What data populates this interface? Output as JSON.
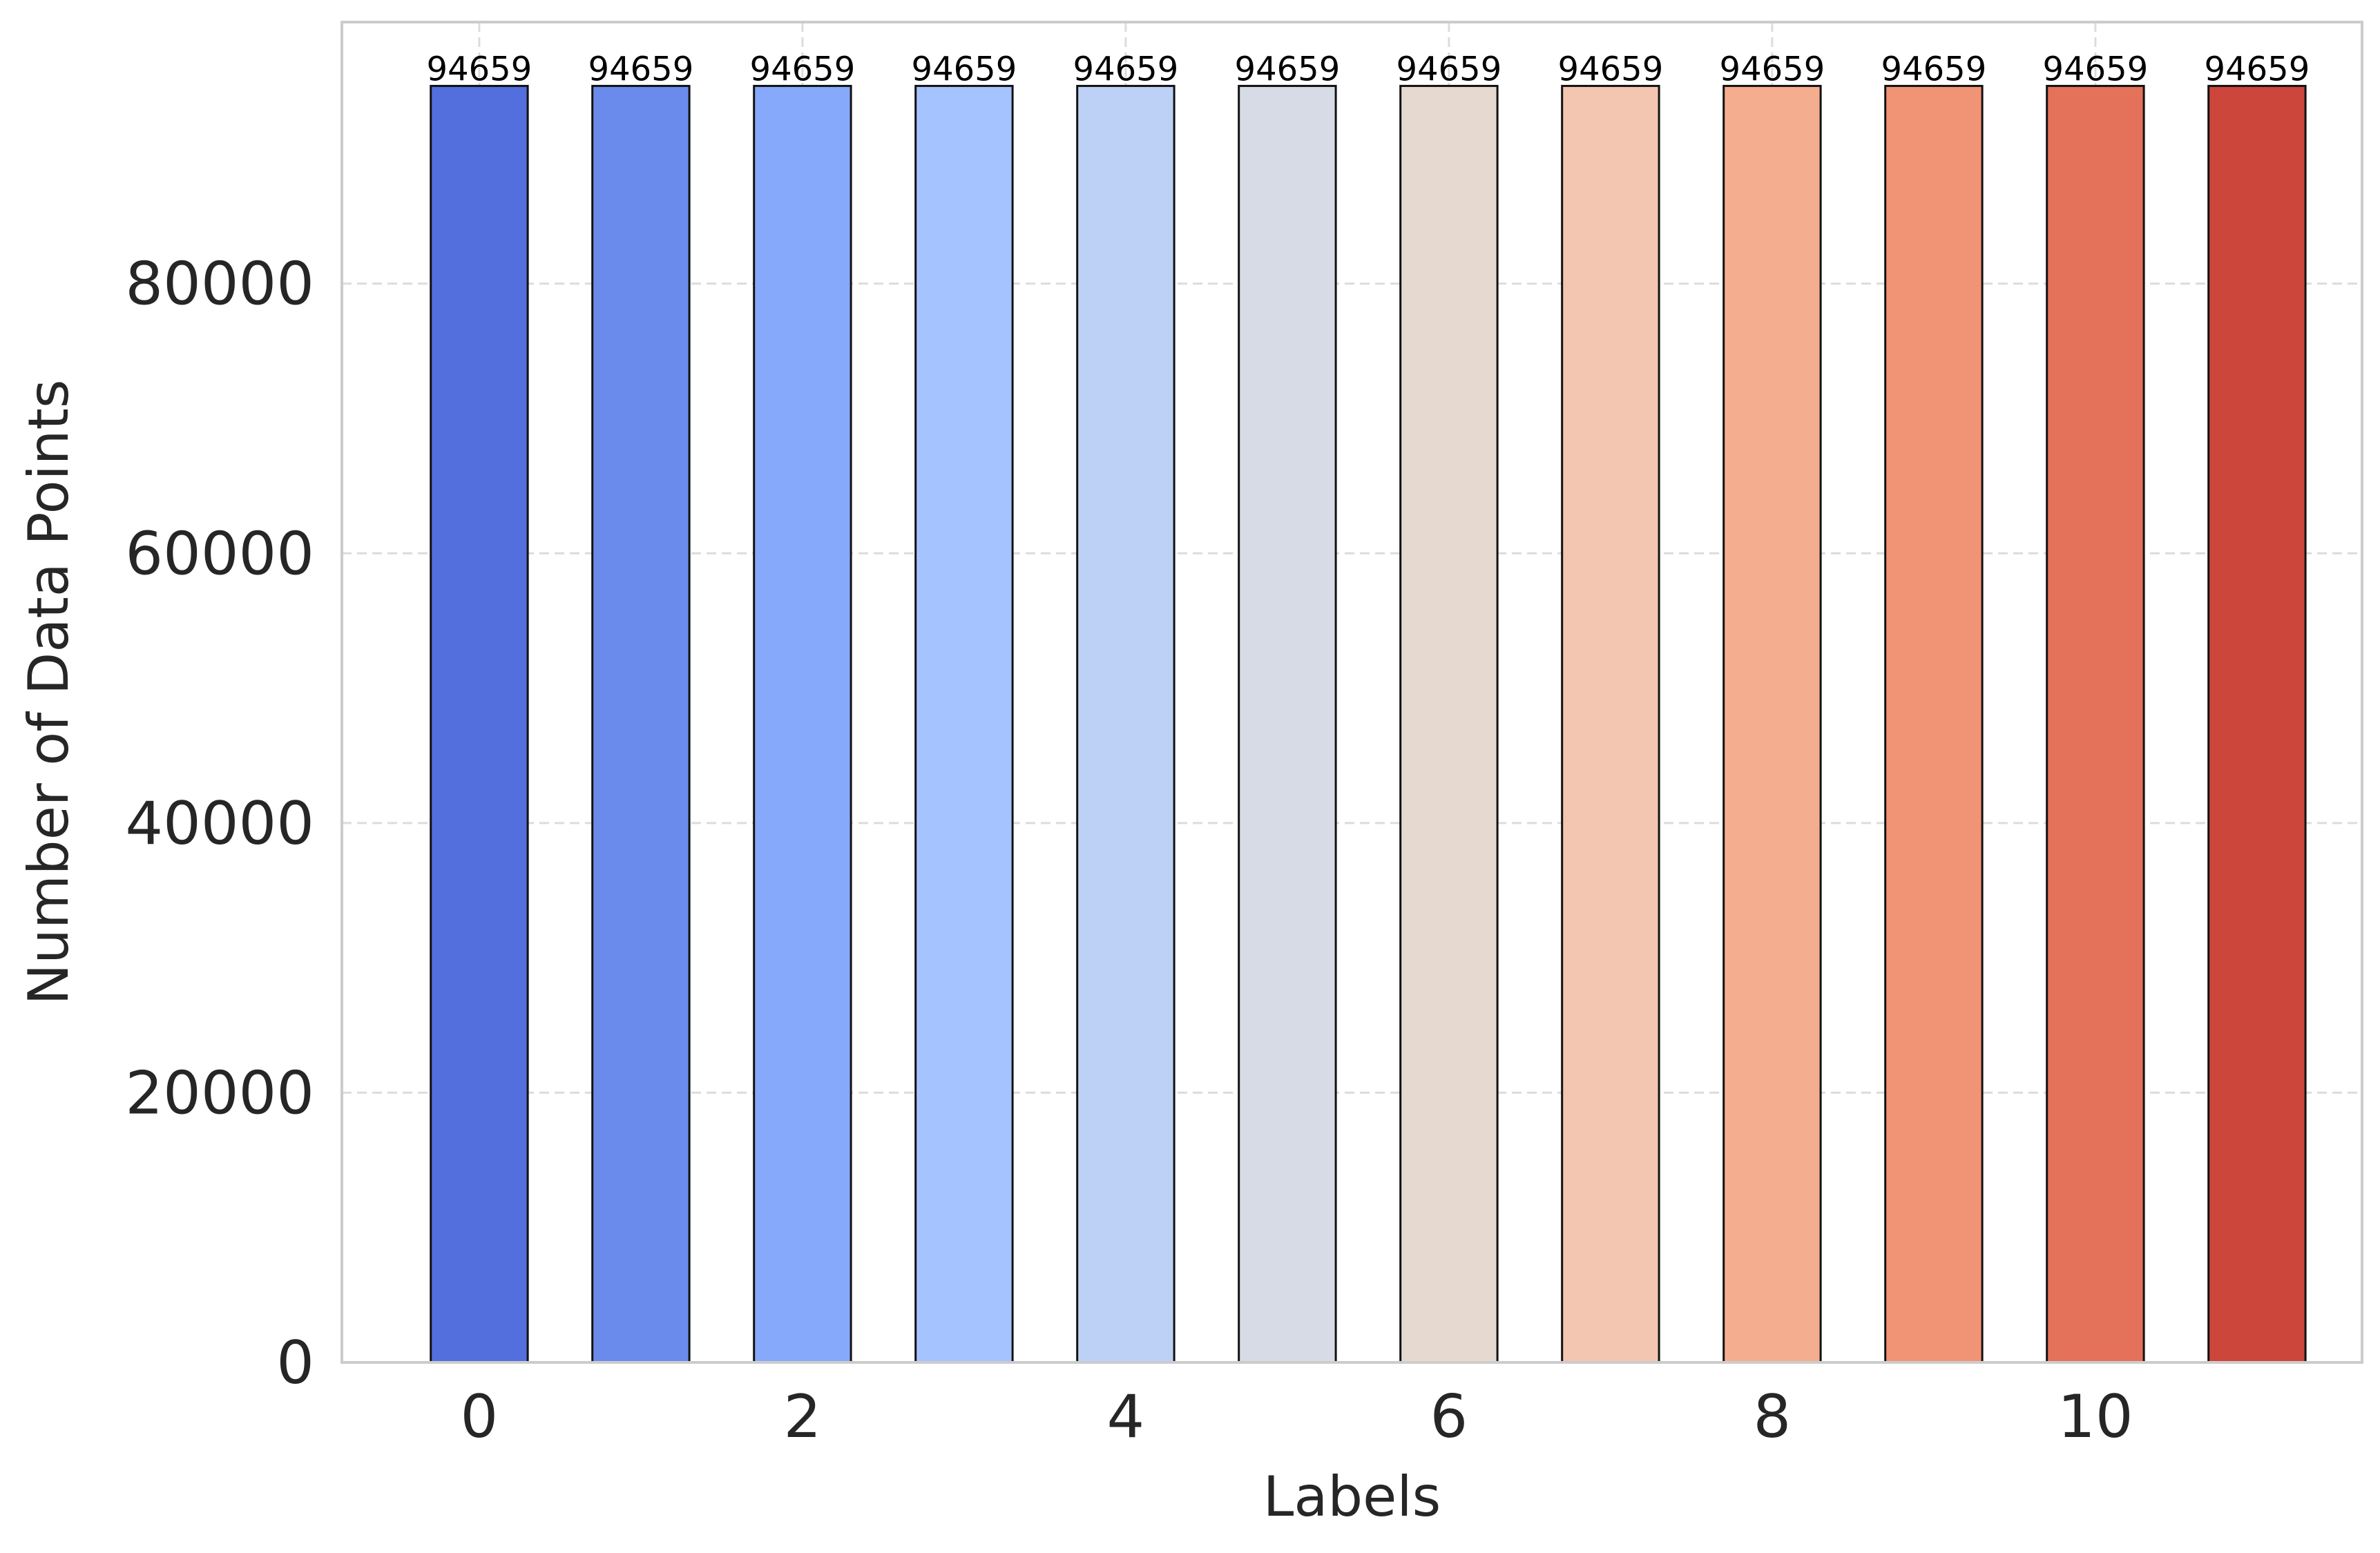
{
  "chart_data": {
    "type": "bar",
    "title": "",
    "xlabel": "Labels",
    "ylabel": "Number of Data Points",
    "categories": [
      0,
      1,
      2,
      3,
      4,
      5,
      6,
      7,
      8,
      9,
      10,
      11
    ],
    "values": [
      94659,
      94659,
      94659,
      94659,
      94659,
      94659,
      94659,
      94659,
      94659,
      94659,
      94659,
      94659
    ],
    "data_labels": [
      "94659",
      "94659",
      "94659",
      "94659",
      "94659",
      "94659",
      "94659",
      "94659",
      "94659",
      "94659",
      "94659",
      "94659"
    ],
    "colors": [
      "#536edd",
      "#6a8bec",
      "#87a9fb",
      "#a5c3fe",
      "#bdd1f6",
      "#d6dbe5",
      "#e6d9d0",
      "#f3c6b1",
      "#f5ad8f",
      "#f19375",
      "#e47159",
      "#cd463b"
    ],
    "xlim": [
      -0.85,
      11.65
    ],
    "ylim": [
      0,
      99392
    ],
    "x_ticks": [
      0,
      2,
      4,
      6,
      8,
      10
    ],
    "x_tick_labels": [
      "0",
      "2",
      "4",
      "6",
      "8",
      "10"
    ],
    "y_ticks": [
      0,
      20000,
      40000,
      60000,
      80000
    ],
    "y_tick_labels": [
      "0",
      "20000",
      "40000",
      "60000",
      "80000"
    ],
    "grid": true,
    "legend": false
  }
}
